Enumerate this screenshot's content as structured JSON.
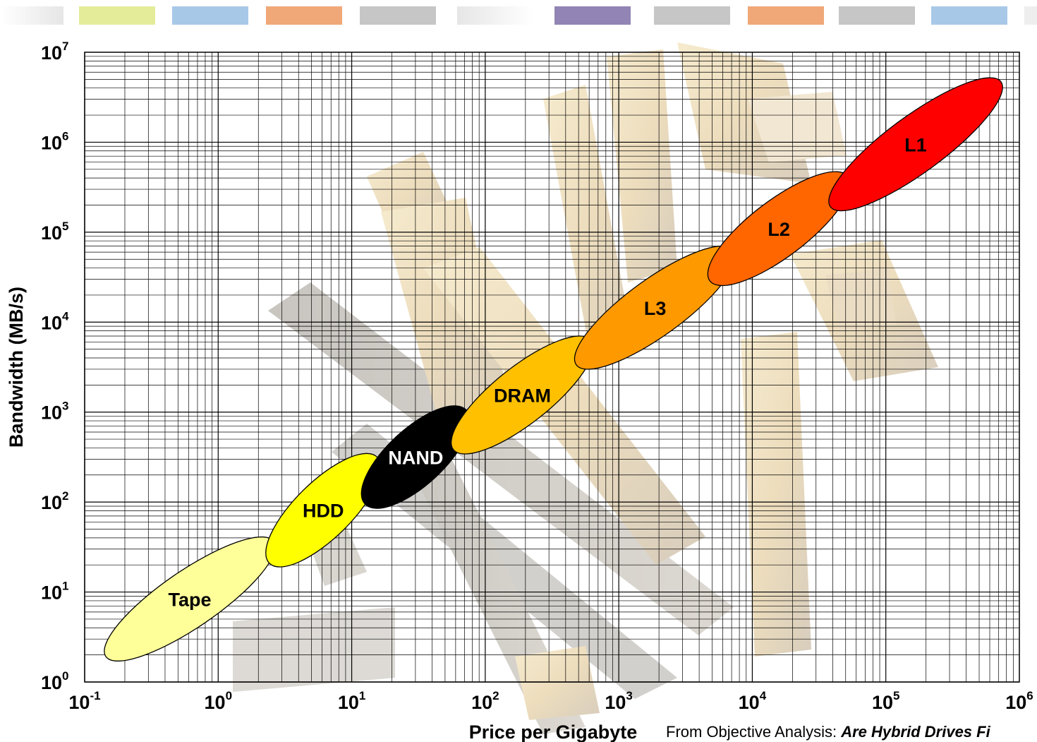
{
  "header_strip": {
    "swatches": [
      "#eeeeee",
      "#e4ec9a",
      "#a8c8e8",
      "#f0a878",
      "#c6c6c6",
      "#eeeeee",
      "#9284b4",
      "#c6c6c6",
      "#f0a878",
      "#c6c6c6",
      "#a8c8e8",
      "#eeeeee"
    ]
  },
  "chart_data": {
    "type": "scatter",
    "scale": {
      "x": "log",
      "y": "log"
    },
    "xlabel": "Price per Gigabyte",
    "ylabel": "Bandwidth (MB/s)",
    "xlim": [
      0.1,
      1000000
    ],
    "ylim": [
      1,
      10000000
    ],
    "x_ticks": [
      {
        "base": "10",
        "exp": "-1"
      },
      {
        "base": "10",
        "exp": "0"
      },
      {
        "base": "10",
        "exp": "1"
      },
      {
        "base": "10",
        "exp": "2"
      },
      {
        "base": "10",
        "exp": "3"
      },
      {
        "base": "10",
        "exp": "4"
      },
      {
        "base": "10",
        "exp": "5"
      },
      {
        "base": "10",
        "exp": "6"
      }
    ],
    "y_ticks": [
      {
        "base": "10",
        "exp": "0"
      },
      {
        "base": "10",
        "exp": "1"
      },
      {
        "base": "10",
        "exp": "2"
      },
      {
        "base": "10",
        "exp": "3"
      },
      {
        "base": "10",
        "exp": "4"
      },
      {
        "base": "10",
        "exp": "5"
      },
      {
        "base": "10",
        "exp": "6"
      },
      {
        "base": "10",
        "exp": "7"
      }
    ],
    "grid": true,
    "regions": [
      {
        "label": "Tape",
        "x_range": [
          0.15,
          2.5
        ],
        "y_range": [
          2,
          35
        ],
        "color": "#ffff99"
      },
      {
        "label": "HDD",
        "x_range": [
          2.5,
          15
        ],
        "y_range": [
          22,
          300
        ],
        "color": "#ffff00"
      },
      {
        "label": "NAND",
        "x_range": [
          13,
          70
        ],
        "y_range": [
          100,
          1000
        ],
        "color": "#000000"
      },
      {
        "label": "DRAM",
        "x_range": [
          60,
          600
        ],
        "y_range": [
          400,
          6000
        ],
        "color": "#ffc000"
      },
      {
        "label": "L3",
        "x_range": [
          500,
          7000
        ],
        "y_range": [
          3500,
          60000
        ],
        "color": "#ff9900"
      },
      {
        "label": "L2",
        "x_range": [
          5000,
          50000
        ],
        "y_range": [
          30000,
          400000
        ],
        "color": "#ff6600"
      },
      {
        "label": "L1",
        "x_range": [
          40000,
          700000
        ],
        "y_range": [
          200000,
          4500000
        ],
        "color": "#ff0000"
      }
    ]
  },
  "source_note": {
    "prefix": "From Objective Analysis: ",
    "italic": "Are Hybrid Drives Fi"
  }
}
